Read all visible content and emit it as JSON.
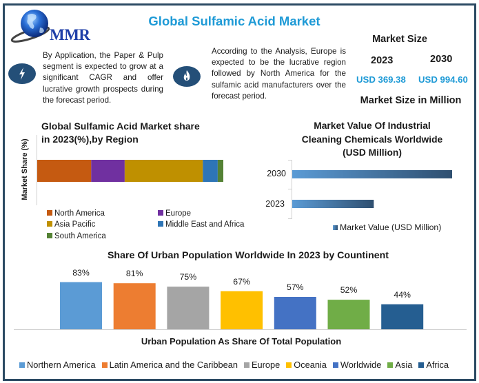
{
  "header": {
    "logo_text": "MMR",
    "title": "Global Sulfamic Acid Market"
  },
  "insights": [
    {
      "icon": "lightning-bolt-icon",
      "text": "By Application, the Paper & Pulp segment is expected to grow at a significant CAGR and offer lucrative growth prospects during the forecast period."
    },
    {
      "icon": "flame-icon",
      "text": "According to the Analysis, Europe is expected to be the lucrative region followed by North America for the sulfamic acid manufacturers over the forecast period."
    }
  ],
  "market_size": {
    "title": "Market Size",
    "year_2023": "2023",
    "year_2030": "2030",
    "value_2023": "USD 369.38",
    "value_2030": "USD 994.60",
    "unit_label": "Market Size in Million"
  },
  "colors": {
    "frame": "#2b4a63",
    "accent": "#1e9ad6",
    "icon_bg": "#244f78"
  },
  "chart_data": [
    {
      "type": "bar",
      "orientation": "horizontal-stacked",
      "title_line1": "Global Sulfamic Acid Market share",
      "title_line2": "in 2023(%),by Region",
      "ylabel": "Market Share (%)",
      "xlabel": "",
      "xlim": [
        0,
        100
      ],
      "legend_position": "bottom",
      "series": [
        {
          "name": "North America",
          "value": 29,
          "color": "#c55a11"
        },
        {
          "name": "Europe",
          "value": 18,
          "color": "#7030a0"
        },
        {
          "name": "Asia Pacific",
          "value": 42,
          "color": "#bf9000"
        },
        {
          "name": "Middle East and Africa",
          "value": 8,
          "color": "#2e75b6"
        },
        {
          "name": "South America",
          "value": 3,
          "color": "#548235"
        }
      ]
    },
    {
      "type": "bar",
      "orientation": "horizontal",
      "title_line1": "Market Value Of Industrial",
      "title_line2": "Cleaning Chemicals Worldwide",
      "title_line3": "(USD Million)",
      "categories": [
        "2030",
        "2023"
      ],
      "values": [
        100,
        51
      ],
      "value_note": "relative lengths, no values printed",
      "legend": "Market Value (USD Million)",
      "legend_position": "bottom",
      "color_start": "#5b9bd5",
      "color_end": "#2f4f70"
    },
    {
      "type": "bar",
      "title": "Share Of Urban Population Worldwide In 2023 by Countinent",
      "xlabel": "Urban Population As Share Of Total Population",
      "ylabel": "",
      "ylim": [
        0,
        100
      ],
      "grid": false,
      "legend_position": "bottom",
      "categories": [
        "Northern America",
        "Latin America and the Caribbean",
        "Europe",
        "Oceania",
        "Worldwide",
        "Asia",
        "Africa"
      ],
      "values": [
        83,
        81,
        75,
        67,
        57,
        52,
        44
      ],
      "labels": [
        "83%",
        "81%",
        "75%",
        "67%",
        "57%",
        "52%",
        "44%"
      ],
      "colors": [
        "#5b9bd5",
        "#ed7d31",
        "#a5a5a5",
        "#ffc000",
        "#4472c4",
        "#70ad47",
        "#255e91"
      ]
    }
  ]
}
